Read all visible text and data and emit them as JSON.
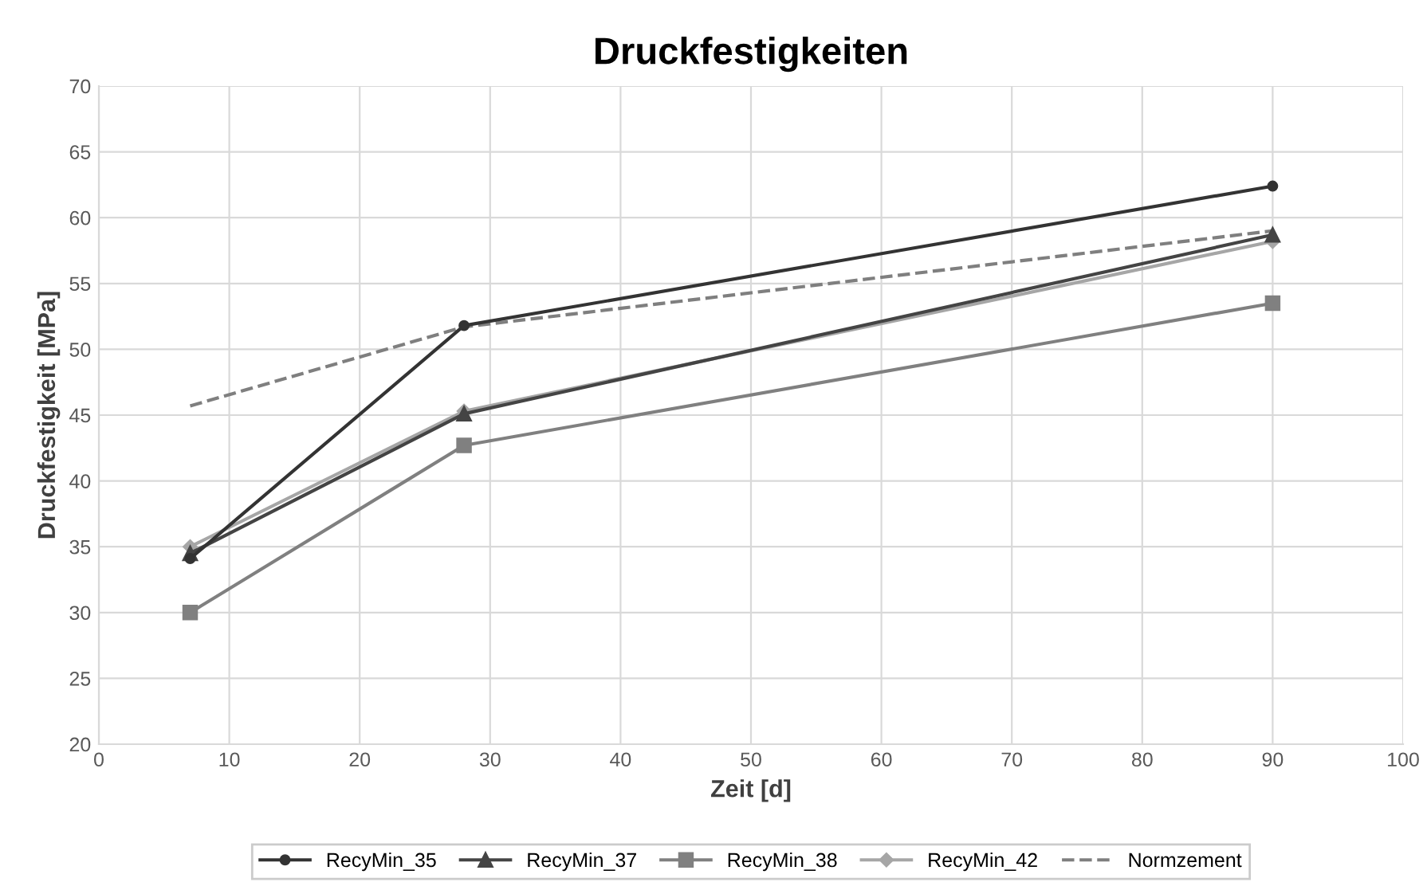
{
  "chart_data": {
    "type": "line",
    "title": "Druckfestigkeiten",
    "xlabel": "Zeit [d]",
    "ylabel": "Druckfestigkeit [MPa]",
    "x": [
      7,
      28,
      90
    ],
    "xlim": [
      0,
      100
    ],
    "xticks": [
      0,
      10,
      20,
      30,
      40,
      50,
      60,
      70,
      80,
      90,
      100
    ],
    "ylim": [
      20,
      70
    ],
    "yticks": [
      20,
      25,
      30,
      35,
      40,
      45,
      50,
      55,
      60,
      65,
      70
    ],
    "grid": true,
    "legend": "bottom",
    "series": [
      {
        "name": "RecyMin_35",
        "color": "#333333",
        "values": [
          34.1,
          51.8,
          62.4
        ],
        "marker": "circle",
        "line_style": "solid"
      },
      {
        "name": "RecyMin_37",
        "color": "#444444",
        "values": [
          34.5,
          45.1,
          58.7
        ],
        "marker": "triangle",
        "line_style": "solid"
      },
      {
        "name": "RecyMin_38",
        "color": "#808080",
        "values": [
          30.0,
          42.7,
          53.5
        ],
        "marker": "square",
        "line_style": "solid"
      },
      {
        "name": "RecyMin_42",
        "color": "#a6a6a6",
        "values": [
          35.0,
          45.3,
          58.2
        ],
        "marker": "diamond",
        "line_style": "solid"
      },
      {
        "name": "Normzement",
        "color": "#7f7f7f",
        "values": [
          45.7,
          51.7,
          59.0
        ],
        "marker": "none",
        "line_style": "dashed"
      }
    ]
  }
}
